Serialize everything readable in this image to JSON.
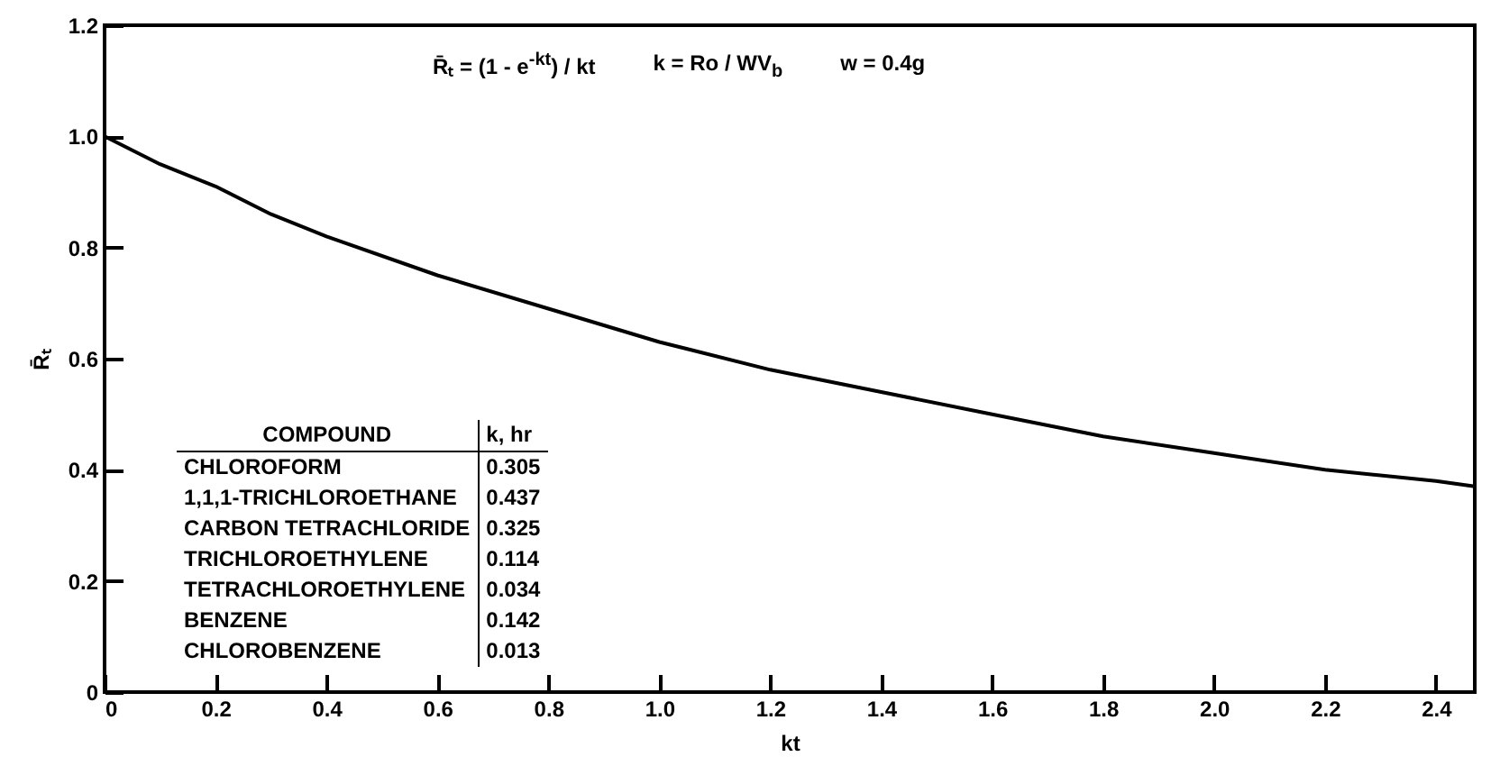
{
  "chart_data": {
    "type": "line",
    "xlabel": "kt",
    "ylabel": "R̄ₜ",
    "x": [
      0,
      0.1,
      0.2,
      0.3,
      0.4,
      0.6,
      0.8,
      1.0,
      1.2,
      1.4,
      1.6,
      1.8,
      2.0,
      2.2,
      2.4,
      2.47
    ],
    "series": [
      {
        "color": "#000000",
        "values": [
          1.0,
          0.95,
          0.91,
          0.86,
          0.82,
          0.75,
          0.69,
          0.63,
          0.58,
          0.54,
          0.5,
          0.46,
          0.43,
          0.4,
          0.38,
          0.37
        ]
      }
    ],
    "xlim": [
      0,
      2.47
    ],
    "ylim": [
      0,
      1.2
    ],
    "xticks": [
      0,
      0.2,
      0.4,
      0.6,
      0.8,
      {
        "value": 1,
        "label": "1.0"
      },
      1.2,
      1.4,
      1.6,
      1.8,
      {
        "value": 2,
        "label": "2.0"
      },
      2.2,
      2.4
    ],
    "yticks": [
      0,
      0.2,
      0.4,
      0.6,
      0.8,
      {
        "value": 1,
        "label": "1.0"
      },
      {
        "value": 1.2,
        "label": "1.2"
      }
    ],
    "grid": false,
    "marker": "none",
    "line_style": "solid",
    "annotations": [
      "R̄ₜ = (1 - e$^{-kt}$) / kt",
      "k = Ro / WV$_{b}$",
      "w = 0.4g",
      "COMPOUND",
      "k, hr",
      "CHLOROFORM",
      "0.305",
      "1,1,1-TRICHLOROETHANE",
      "0.437",
      "CARBON TETRACHLORIDE",
      "0.325",
      "TRICHLOROETHYLENE",
      "0.114",
      "TETRACHLOROETHYLENE",
      "0.034",
      "BENZENE",
      "0.142",
      "CHLOROBENZENE",
      "0.013"
    ]
  }
}
